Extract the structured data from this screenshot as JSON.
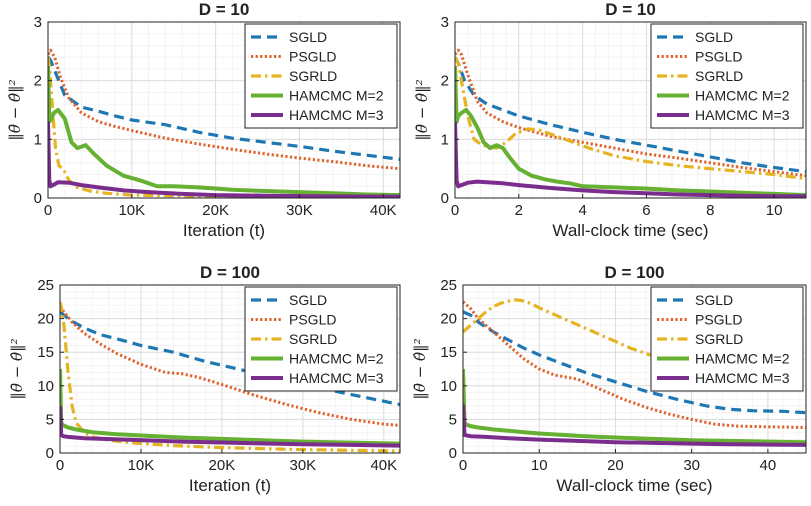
{
  "ylabel_text": "‖θ̄ − θ̂‖²",
  "chart_data": [
    {
      "type": "line",
      "title": "D = 10",
      "xlabel": "Iteration (t)",
      "ylabel": "‖θ̄ − θ̂‖²",
      "xlim": [
        0,
        42000
      ],
      "ylim": [
        0,
        3
      ],
      "xticks": [
        0,
        10000,
        20000,
        30000,
        40000
      ],
      "xtick_labels": [
        "0",
        "10K",
        "20K",
        "30K",
        "40K"
      ],
      "yticks": [
        0,
        1,
        2,
        3
      ],
      "ytick_labels": [
        "0",
        "1",
        "2",
        "3"
      ],
      "grid": true,
      "legend_position": "top-right",
      "series": [
        {
          "name": "SGLD",
          "color": "#1f77b4",
          "style": "dashed",
          "x": [
            0,
            300,
            1000,
            2000,
            4000,
            6000,
            8000,
            10000,
            14000,
            18000,
            22000,
            26000,
            30000,
            34000,
            38000,
            42000
          ],
          "y": [
            2.4,
            2.35,
            2.1,
            1.75,
            1.55,
            1.48,
            1.4,
            1.33,
            1.25,
            1.12,
            1.02,
            0.95,
            0.88,
            0.8,
            0.73,
            0.66
          ]
        },
        {
          "name": "PSGLD",
          "color": "#e0622a",
          "style": "dotted",
          "x": [
            0,
            300,
            800,
            1500,
            2500,
            4000,
            6000,
            8000,
            10000,
            14000,
            18000,
            22000,
            26000,
            30000,
            34000,
            38000,
            42000
          ],
          "y": [
            2.45,
            2.52,
            2.4,
            2.05,
            1.7,
            1.45,
            1.3,
            1.22,
            1.15,
            1.02,
            0.92,
            0.83,
            0.75,
            0.68,
            0.62,
            0.55,
            0.5
          ]
        },
        {
          "name": "SGRLD",
          "color": "#e6b422",
          "style": "dashdot",
          "x": [
            0,
            200,
            500,
            900,
            1300,
            1800,
            2500,
            3500,
            5000,
            7000,
            10000,
            20000,
            42000
          ],
          "y": [
            2.4,
            2.2,
            1.6,
            0.85,
            0.55,
            0.5,
            0.3,
            0.18,
            0.12,
            0.08,
            0.05,
            0.03,
            0.02
          ]
        },
        {
          "name": "HAMCMC M=2",
          "color": "#66b032",
          "style": "solid",
          "x": [
            0,
            150,
            400,
            700,
            1200,
            2000,
            2800,
            3500,
            4500,
            5500,
            7000,
            9000,
            11000,
            13000,
            15000,
            18000,
            22000,
            26000,
            30000,
            34000,
            38000,
            42000
          ],
          "y": [
            2.25,
            1.3,
            1.35,
            1.45,
            1.5,
            1.35,
            0.95,
            0.85,
            0.9,
            0.75,
            0.55,
            0.38,
            0.3,
            0.2,
            0.2,
            0.18,
            0.14,
            0.12,
            0.1,
            0.08,
            0.06,
            0.05
          ]
        },
        {
          "name": "HAMCMC M=3",
          "color": "#7b2d8e",
          "style": "solid",
          "x": [
            0,
            150,
            300,
            600,
            1200,
            2500,
            4000,
            6000,
            9000,
            12000,
            16000,
            20000,
            26000,
            32000,
            42000
          ],
          "y": [
            1.3,
            0.3,
            0.2,
            0.22,
            0.27,
            0.26,
            0.22,
            0.18,
            0.13,
            0.1,
            0.07,
            0.05,
            0.04,
            0.03,
            0.02
          ]
        }
      ]
    },
    {
      "type": "line",
      "title": "D = 10",
      "xlabel": "Wall-clock time (sec)",
      "ylabel": "‖θ̄ − θ̂‖²",
      "xlim": [
        0,
        11
      ],
      "ylim": [
        0,
        3
      ],
      "xticks": [
        0,
        2,
        4,
        6,
        8,
        10
      ],
      "xtick_labels": [
        "0",
        "2",
        "4",
        "6",
        "8",
        "10"
      ],
      "yticks": [
        0,
        1,
        2,
        3
      ],
      "ytick_labels": [
        "0",
        "1",
        "2",
        "3"
      ],
      "grid": true,
      "legend_position": "top-right",
      "series": [
        {
          "name": "SGLD",
          "color": "#1f77b4",
          "style": "dashed",
          "x": [
            0,
            0.1,
            0.3,
            0.6,
            1,
            1.5,
            2,
            3,
            4,
            5,
            6,
            7,
            8,
            9,
            10,
            11
          ],
          "y": [
            2.4,
            2.3,
            2.0,
            1.75,
            1.6,
            1.5,
            1.4,
            1.25,
            1.12,
            1.0,
            0.9,
            0.8,
            0.7,
            0.6,
            0.52,
            0.45
          ]
        },
        {
          "name": "PSGLD",
          "color": "#e0622a",
          "style": "dotted",
          "x": [
            0,
            0.1,
            0.2,
            0.4,
            0.7,
            1,
            1.5,
            2,
            3,
            4,
            5,
            6,
            7,
            8,
            9,
            10,
            11
          ],
          "y": [
            2.45,
            2.52,
            2.45,
            2.1,
            1.65,
            1.45,
            1.3,
            1.2,
            1.05,
            0.95,
            0.85,
            0.75,
            0.68,
            0.6,
            0.52,
            0.45,
            0.38
          ]
        },
        {
          "name": "SGRLD",
          "color": "#e6b422",
          "style": "dashdot",
          "x": [
            0,
            0.1,
            0.2,
            0.4,
            0.6,
            0.8,
            1.0,
            1.3,
            1.6,
            1.9,
            2.3,
            2.7,
            3.2,
            3.7,
            4.2,
            5,
            6,
            7,
            8,
            9,
            10,
            11
          ],
          "y": [
            2.4,
            2.3,
            2.0,
            1.4,
            1.0,
            0.92,
            0.88,
            0.85,
            0.95,
            1.1,
            1.18,
            1.15,
            1.05,
            0.95,
            0.85,
            0.72,
            0.62,
            0.55,
            0.5,
            0.45,
            0.4,
            0.33
          ]
        },
        {
          "name": "HAMCMC M=2",
          "color": "#66b032",
          "style": "solid",
          "x": [
            0,
            0.05,
            0.1,
            0.2,
            0.35,
            0.5,
            0.7,
            0.9,
            1.1,
            1.3,
            1.5,
            1.7,
            2.0,
            2.4,
            2.8,
            3.2,
            3.6,
            4,
            5,
            6,
            7,
            8,
            9,
            10,
            11
          ],
          "y": [
            2.25,
            1.3,
            1.4,
            1.45,
            1.5,
            1.4,
            1.2,
            0.95,
            0.85,
            0.9,
            0.85,
            0.7,
            0.5,
            0.38,
            0.32,
            0.28,
            0.25,
            0.2,
            0.18,
            0.16,
            0.13,
            0.11,
            0.09,
            0.07,
            0.05
          ]
        },
        {
          "name": "HAMCMC M=3",
          "color": "#7b2d8e",
          "style": "solid",
          "x": [
            0,
            0.05,
            0.1,
            0.2,
            0.4,
            0.7,
            1.0,
            1.5,
            2,
            3,
            4,
            5,
            6,
            7,
            8,
            9,
            10,
            11
          ],
          "y": [
            1.3,
            0.3,
            0.2,
            0.22,
            0.26,
            0.28,
            0.27,
            0.25,
            0.22,
            0.17,
            0.13,
            0.1,
            0.08,
            0.06,
            0.05,
            0.04,
            0.03,
            0.03
          ]
        }
      ]
    },
    {
      "type": "line",
      "title": "D = 100",
      "xlabel": "Iteration (t)",
      "ylabel": "‖θ̄ − θ̂‖²",
      "xlim": [
        0,
        42000
      ],
      "ylim": [
        0,
        25
      ],
      "xticks": [
        0,
        10000,
        20000,
        30000,
        40000
      ],
      "xtick_labels": [
        "0",
        "10K",
        "20K",
        "30K",
        "40K"
      ],
      "yticks": [
        0,
        5,
        10,
        15,
        20,
        25
      ],
      "ytick_labels": [
        "0",
        "5",
        "10",
        "15",
        "20",
        "25"
      ],
      "grid": true,
      "legend_position": "top-right",
      "series": [
        {
          "name": "SGLD",
          "color": "#1f77b4",
          "style": "dashed",
          "x": [
            0,
            500,
            1500,
            3000,
            5000,
            7000,
            10000,
            14000,
            18000,
            22000,
            26000,
            30000,
            34000,
            38000,
            42000
          ],
          "y": [
            21.0,
            20.5,
            19.6,
            18.6,
            17.6,
            17.0,
            16.0,
            15.0,
            13.6,
            12.5,
            11.3,
            10.3,
            9.2,
            8.2,
            7.2
          ]
        },
        {
          "name": "PSGLD",
          "color": "#e0622a",
          "style": "dotted",
          "x": [
            0,
            500,
            1500,
            3000,
            5000,
            7000,
            10000,
            13000,
            15000,
            17000,
            20000,
            24000,
            28000,
            32000,
            36000,
            40000,
            42000
          ],
          "y": [
            21.8,
            21.0,
            19.5,
            17.8,
            16.2,
            14.8,
            13.2,
            12.0,
            11.8,
            11.3,
            10.2,
            8.6,
            7.2,
            6.0,
            5.0,
            4.3,
            4.1
          ]
        },
        {
          "name": "SGRLD",
          "color": "#e6b422",
          "style": "dashdot",
          "x": [
            0,
            200,
            500,
            1000,
            1500,
            2000,
            3000,
            4000,
            6000,
            9000,
            14000,
            20000,
            30000,
            42000
          ],
          "y": [
            22.5,
            21.5,
            19.0,
            12.0,
            7.0,
            4.5,
            3.0,
            2.4,
            1.9,
            1.5,
            1.1,
            0.8,
            0.5,
            0.3
          ]
        },
        {
          "name": "HAMCMC M=2",
          "color": "#66b032",
          "style": "solid",
          "x": [
            0,
            150,
            400,
            1000,
            2000,
            4000,
            7000,
            10000,
            15000,
            20000,
            25000,
            30000,
            36000,
            42000
          ],
          "y": [
            12.5,
            4.5,
            4.1,
            3.8,
            3.5,
            3.1,
            2.8,
            2.6,
            2.3,
            2.1,
            1.9,
            1.7,
            1.55,
            1.4
          ]
        },
        {
          "name": "HAMCMC M=3",
          "color": "#7b2d8e",
          "style": "solid",
          "x": [
            0,
            150,
            400,
            1000,
            3000,
            8000,
            15000,
            22000,
            30000,
            36000,
            42000
          ],
          "y": [
            7.0,
            2.7,
            2.5,
            2.4,
            2.2,
            2.0,
            1.7,
            1.5,
            1.3,
            1.2,
            1.1
          ]
        }
      ]
    },
    {
      "type": "line",
      "title": "D = 100",
      "xlabel": "Wall-clock time (sec)",
      "ylabel": "‖θ̄ − θ̂‖²",
      "xlim": [
        0,
        45
      ],
      "ylim": [
        0,
        25
      ],
      "xticks": [
        0,
        10,
        20,
        30,
        40
      ],
      "xtick_labels": [
        "0",
        "10",
        "20",
        "30",
        "40"
      ],
      "yticks": [
        0,
        5,
        10,
        15,
        20,
        25
      ],
      "ytick_labels": [
        "0",
        "5",
        "10",
        "15",
        "20",
        "25"
      ],
      "grid": true,
      "legend_position": "top-right",
      "series": [
        {
          "name": "SGLD",
          "color": "#1f77b4",
          "style": "dashed",
          "x": [
            0,
            1,
            2,
            4,
            6,
            8,
            10,
            13,
            16,
            20,
            24,
            28,
            32,
            35,
            38,
            42,
            45
          ],
          "y": [
            21.0,
            20.5,
            19.5,
            18.0,
            16.8,
            15.6,
            14.6,
            13.3,
            12.0,
            10.6,
            9.2,
            8.0,
            7.0,
            6.5,
            6.3,
            6.2,
            6.0
          ]
        },
        {
          "name": "PSGLD",
          "color": "#e0622a",
          "style": "dotted",
          "x": [
            0,
            1,
            2,
            4,
            6,
            8,
            10,
            12,
            15,
            18,
            21,
            24,
            27,
            30,
            33,
            36,
            40,
            45
          ],
          "y": [
            22.5,
            21.5,
            20.0,
            18.0,
            16.0,
            14.0,
            12.5,
            11.6,
            11.0,
            9.5,
            8.0,
            6.8,
            5.8,
            5.0,
            4.3,
            4.0,
            3.9,
            3.8
          ]
        },
        {
          "name": "SGRLD",
          "color": "#e6b422",
          "style": "dashdot",
          "x": [
            0,
            1,
            2,
            3,
            4,
            5,
            6,
            7,
            8,
            9,
            10,
            12,
            14,
            16,
            18,
            20,
            22,
            24,
            26,
            28,
            30,
            31,
            32
          ],
          "y": [
            18.0,
            19.0,
            20.0,
            21.0,
            21.8,
            22.3,
            22.6,
            22.8,
            22.6,
            22.2,
            21.6,
            20.6,
            19.6,
            18.6,
            17.6,
            16.6,
            15.6,
            14.8,
            14.0,
            13.2,
            12.4,
            12.0,
            11.6
          ]
        },
        {
          "name": "HAMCMC M=2",
          "color": "#66b032",
          "style": "solid",
          "x": [
            0,
            0.2,
            0.5,
            1,
            2,
            4,
            6,
            8,
            10,
            13,
            16,
            20,
            25,
            30,
            35,
            40,
            45
          ],
          "y": [
            12.5,
            4.5,
            4.2,
            4.0,
            3.8,
            3.5,
            3.3,
            3.1,
            2.9,
            2.7,
            2.5,
            2.3,
            2.1,
            1.9,
            1.8,
            1.7,
            1.6
          ]
        },
        {
          "name": "HAMCMC M=3",
          "color": "#7b2d8e",
          "style": "solid",
          "x": [
            0,
            0.2,
            0.5,
            1,
            3,
            6,
            10,
            15,
            20,
            25,
            30,
            35,
            40,
            45
          ],
          "y": [
            7.2,
            2.7,
            2.6,
            2.5,
            2.4,
            2.2,
            2.0,
            1.8,
            1.6,
            1.5,
            1.4,
            1.3,
            1.25,
            1.2
          ]
        }
      ]
    }
  ]
}
